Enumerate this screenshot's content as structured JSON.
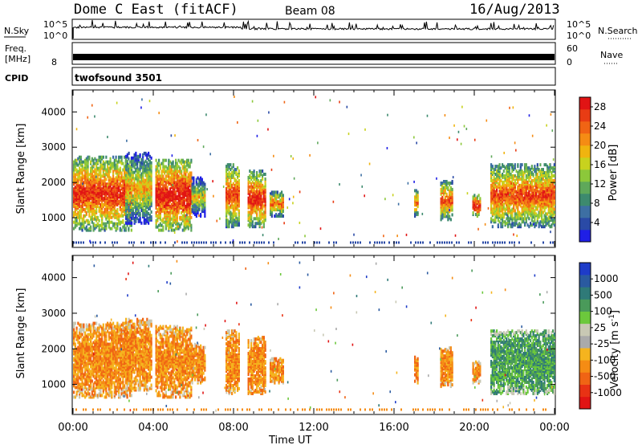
{
  "header": {
    "station": "Dome C East (fitACF)",
    "beam": "Beam 08",
    "date": "16/Aug/2013"
  },
  "aux_panels": {
    "nsky": {
      "label": "N.Sky",
      "scale_top": "10^5",
      "scale_bottom": "10^0"
    },
    "nsearch": {
      "label": "N.Search",
      "scale_top": "10^5",
      "scale_bottom": "10^0"
    },
    "freq": {
      "label_line1": "Freq.",
      "label_line2": "[MHz]",
      "scale_top": "",
      "scale_bottom": "8"
    },
    "nave": {
      "label": "Nave",
      "scale_top": "60",
      "scale_bottom": "0"
    },
    "cpid": {
      "label": "CPID",
      "program": "twofsound 3501"
    }
  },
  "chart_data": [
    {
      "type": "heatmap",
      "name_ui": "power",
      "xlabel": "Time UT",
      "ylabel": "Slant Range [km]",
      "x_ticks": [
        "00:00",
        "04:00",
        "08:00",
        "12:00",
        "16:00",
        "20:00",
        "00:00"
      ],
      "x_range_hours": [
        0,
        24
      ],
      "y_ticks": [
        1000,
        2000,
        3000,
        4000
      ],
      "y_range_km": [
        180,
        4600
      ],
      "colorbar": {
        "label": "Power [dB]",
        "ticks": [
          4,
          8,
          12,
          16,
          20,
          24,
          28
        ],
        "range": [
          0,
          30
        ],
        "colors": [
          "#1f1fe6",
          "#2a4aa6",
          "#3d6fa3",
          "#3d8a6e",
          "#5fa85a",
          "#8cc83a",
          "#c8d21e",
          "#f0b40f",
          "#f58c14",
          "#f06414",
          "#e83c14",
          "#e11414"
        ]
      },
      "echo_regions": [
        {
          "t0": 0.0,
          "t1": 2.9,
          "r0": 600,
          "r1": 2700,
          "p": 22
        },
        {
          "t0": 2.6,
          "t1": 3.9,
          "r0": 800,
          "r1": 2800,
          "p": 14
        },
        {
          "t0": 4.1,
          "t1": 5.9,
          "r0": 600,
          "r1": 2600,
          "p": 24
        },
        {
          "t0": 5.9,
          "t1": 6.6,
          "r0": 1000,
          "r1": 2100,
          "p": 12
        },
        {
          "t0": 7.6,
          "t1": 8.3,
          "r0": 700,
          "r1": 2500,
          "p": 20
        },
        {
          "t0": 8.7,
          "t1": 9.6,
          "r0": 700,
          "r1": 2300,
          "p": 22
        },
        {
          "t0": 9.8,
          "t1": 10.5,
          "r0": 1000,
          "r1": 1700,
          "p": 18
        },
        {
          "t0": 17.0,
          "t1": 17.2,
          "r0": 1000,
          "r1": 1800,
          "p": 18
        },
        {
          "t0": 18.3,
          "t1": 18.9,
          "r0": 900,
          "r1": 2000,
          "p": 20
        },
        {
          "t0": 19.9,
          "t1": 20.3,
          "r0": 1000,
          "r1": 1600,
          "p": 24
        },
        {
          "t0": 20.8,
          "t1": 24.0,
          "r0": 700,
          "r1": 2500,
          "p": 20
        }
      ]
    },
    {
      "type": "heatmap",
      "name_ui": "velocity",
      "xlabel": "Time UT",
      "ylabel": "Slant Range [km]",
      "x_ticks": [
        "00:00",
        "04:00",
        "08:00",
        "12:00",
        "16:00",
        "20:00",
        "00:00"
      ],
      "x_range_hours": [
        0,
        24
      ],
      "y_ticks": [
        1000,
        2000,
        3000,
        4000
      ],
      "y_range_km": [
        180,
        4600
      ],
      "colorbar": {
        "label": "Velocity [m s^-1]",
        "ticks": [
          "1000",
          "500",
          "100",
          "25",
          "-25",
          "-100",
          "-500",
          "-1000"
        ],
        "colors": [
          "#1e3cc8",
          "#2a5aa0",
          "#2f7a78",
          "#4a9a5a",
          "#6cc83c",
          "#c8c8b4",
          "#aaaaaa",
          "#f5b41e",
          "#f58c14",
          "#f06414",
          "#e83214",
          "#e11414"
        ]
      },
      "echo_regions": [
        {
          "t0": 0.0,
          "t1": 2.9,
          "r0": 600,
          "r1": 2700,
          "v": -200
        },
        {
          "t0": 2.6,
          "t1": 3.9,
          "r0": 800,
          "r1": 2800,
          "v": -120
        },
        {
          "t0": 4.1,
          "t1": 5.9,
          "r0": 600,
          "r1": 2600,
          "v": -200
        },
        {
          "t0": 5.9,
          "t1": 6.6,
          "r0": 1000,
          "r1": 2100,
          "v": -50
        },
        {
          "t0": 7.6,
          "t1": 8.3,
          "r0": 700,
          "r1": 2500,
          "v": -150
        },
        {
          "t0": 8.7,
          "t1": 9.6,
          "r0": 700,
          "r1": 2300,
          "v": -200
        },
        {
          "t0": 9.8,
          "t1": 10.5,
          "r0": 1000,
          "r1": 1700,
          "v": -100
        },
        {
          "t0": 17.0,
          "t1": 17.2,
          "r0": 1000,
          "r1": 1800,
          "v": -150
        },
        {
          "t0": 18.3,
          "t1": 18.9,
          "r0": 900,
          "r1": 2000,
          "v": -200
        },
        {
          "t0": 19.9,
          "t1": 20.3,
          "r0": 1000,
          "r1": 1600,
          "v": -150
        },
        {
          "t0": 20.8,
          "t1": 24.0,
          "r0": 700,
          "r1": 2500,
          "v": 100
        }
      ]
    }
  ]
}
